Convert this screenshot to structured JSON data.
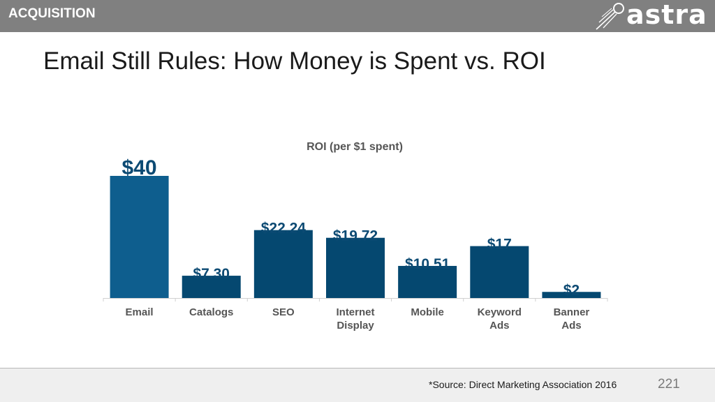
{
  "header": {
    "section_label": "ACQUISITION",
    "logo_text": "astra",
    "logo_icon": "comet-icon"
  },
  "page": {
    "title": "Email Still Rules:  How Money is Spent vs. ROI"
  },
  "colors": {
    "topbar": "#808080",
    "highlight_bar": "#0e5e8e",
    "bar": "#054870",
    "label": "#0c4a73",
    "axis_text": "#555555"
  },
  "chart_data": {
    "type": "bar",
    "title": "ROI (per $1 spent)",
    "categories": [
      [
        "Email"
      ],
      [
        "Catalogs"
      ],
      [
        "SEO"
      ],
      [
        "Internet",
        "Display"
      ],
      [
        "Mobile"
      ],
      [
        "Keyword",
        "Ads"
      ],
      [
        "Banner",
        "Ads"
      ]
    ],
    "values": [
      40,
      7.3,
      22.24,
      19.72,
      10.51,
      17,
      2
    ],
    "data_labels": [
      "$40",
      "$7.30",
      "$22.24",
      "$19.72",
      "$10.51",
      "$17",
      "$2"
    ],
    "highlight_index": 0,
    "ylim": [
      0,
      40
    ],
    "grid": false,
    "legend": "none"
  },
  "footer": {
    "source": "*Source: Direct Marketing Association 2016",
    "page_number": "221"
  }
}
